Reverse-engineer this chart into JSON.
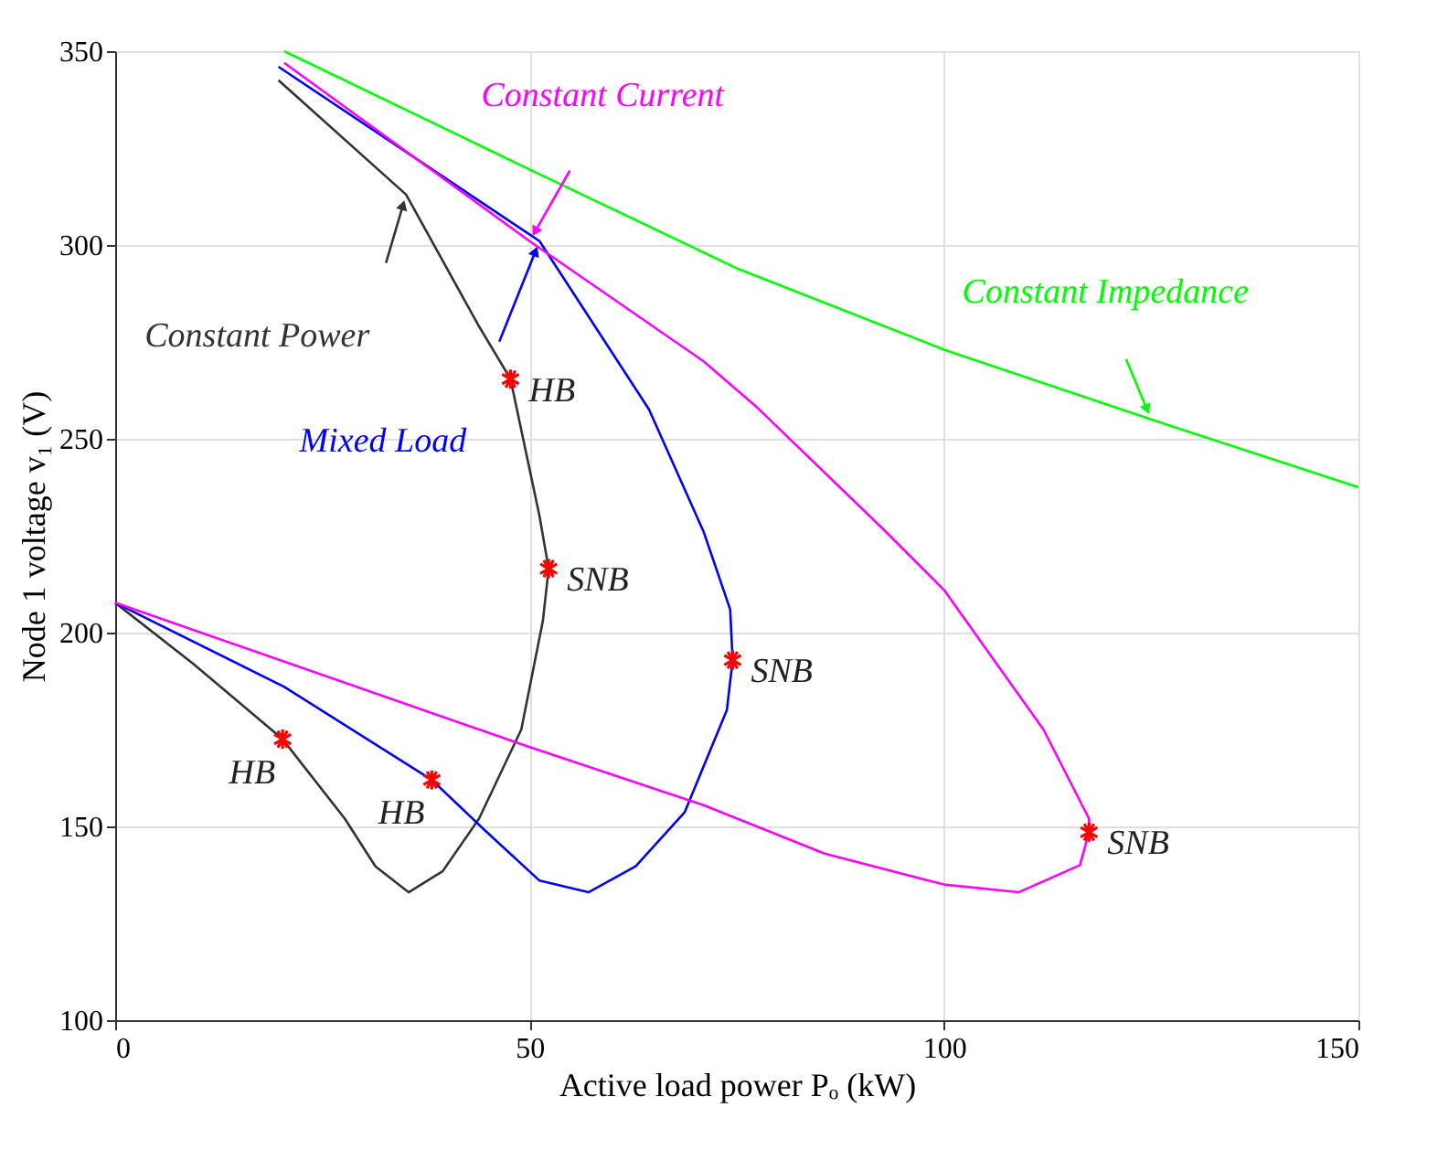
{
  "chart_data": {
    "type": "line",
    "xlabel": "Active load power Pₒ (kW)",
    "ylabel": "Node 1 voltage v₁ (V)",
    "xlim": [
      0,
      150
    ],
    "ylim": [
      100,
      350
    ],
    "xticks": [
      0,
      50,
      100,
      150
    ],
    "yticks": [
      100,
      150,
      200,
      250,
      300,
      350
    ],
    "grid": true,
    "marker": "none",
    "line_style": "solid",
    "series": [
      {
        "name": "Constant Power",
        "color": "#333333",
        "x": [
          19.7,
          35.1,
          43.9,
          47.7,
          51.2,
          52.3,
          51.6,
          49,
          43.9,
          39.5,
          35.4,
          31.4,
          27.7,
          20.2,
          9.4,
          0
        ],
        "values": [
          342.5,
          313,
          279,
          265.4,
          230,
          216.5,
          203,
          175,
          152,
          138.4,
          133,
          139.7,
          152,
          172.5,
          192,
          207.7
        ]
      },
      {
        "name": "Mixed Load",
        "color": "#0000ff",
        "x": [
          19.7,
          51.2,
          64.4,
          71,
          74.2,
          74.5,
          73.8,
          68.7,
          62.8,
          57.1,
          51.2,
          44.6,
          38.2,
          20.4,
          0
        ],
        "values": [
          346,
          301,
          257.6,
          226,
          206,
          192.9,
          180,
          153.6,
          139.7,
          133,
          136,
          149,
          162,
          186,
          207.7
        ]
      },
      {
        "name": "Constant Current",
        "color": "#ff00ff",
        "x": [
          20.4,
          50,
          71,
          77.5,
          93,
          100,
          112,
          117.5,
          117.5,
          116.4,
          109,
          100,
          85.6,
          71,
          49.7,
          0
        ],
        "values": [
          347,
          301,
          270,
          258,
          226,
          211,
          175,
          152,
          148.5,
          140,
          133,
          135,
          143,
          155.5,
          170.7,
          207.7
        ]
      },
      {
        "name": "Constant Impedance",
        "color": "#00ff00",
        "x": [
          20.4,
          50,
          75,
          100,
          125,
          150
        ],
        "values": [
          350,
          319.5,
          294,
          273,
          255,
          237.5
        ]
      },
      {
        "type": "scatter",
        "color": "#ff0000",
        "marker": "cross",
        "x": [
          47.7,
          52.3,
          74.5,
          117.5,
          20.2,
          38.2
        ],
        "values": [
          265.4,
          216.5,
          192.9,
          148.5,
          172.5,
          162
        ]
      }
    ],
    "annotations": [
      {
        "text": "HB",
        "x": 47.7,
        "y": 265.4
      },
      {
        "text": "SNB",
        "x": 52.3,
        "y": 216.5
      },
      {
        "text": "SNB",
        "x": 74.5,
        "y": 192.9
      },
      {
        "text": "SNB",
        "x": 117.5,
        "y": 148.5
      },
      {
        "text": "HB",
        "x": 20.2,
        "y": 172.5
      },
      {
        "text": "HB",
        "x": 38.2,
        "y": 162
      }
    ]
  }
}
